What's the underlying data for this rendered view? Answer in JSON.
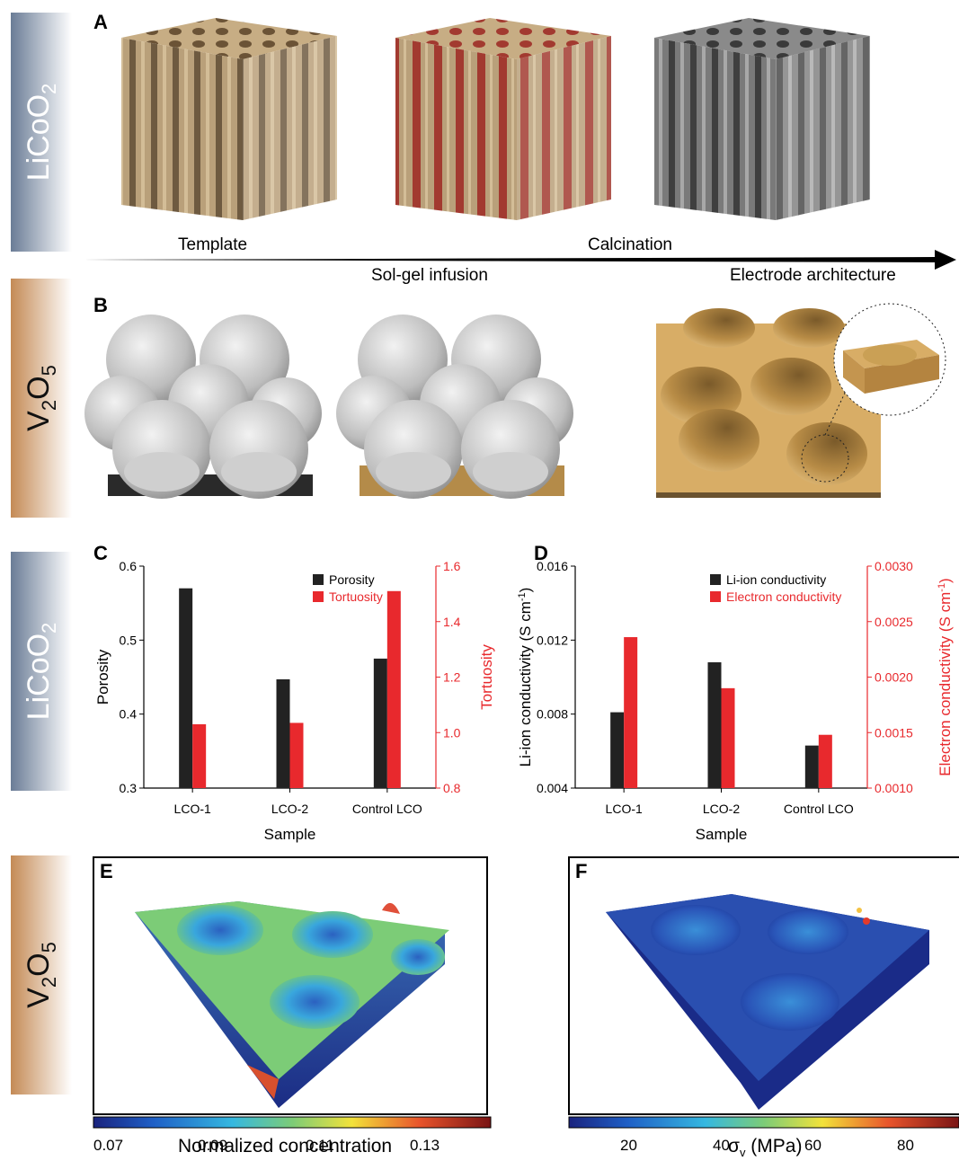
{
  "side_labels": {
    "licoo2_a": "LiCoO",
    "v2o5_b": "V",
    "licoo2_c": "LiCoO",
    "v2o5_e": "V",
    "sub2": "2",
    "sub5": "5",
    "o": "O"
  },
  "panels": {
    "a": "A",
    "b": "B",
    "c": "C",
    "d": "D",
    "e": "E",
    "f": "F"
  },
  "process": {
    "template": "Template",
    "sol_gel": "Sol-gel infusion",
    "calcination": "Calcination",
    "electrode": "Electrode architecture"
  },
  "colors": {
    "wood": "#b49a72",
    "infused": "#a23a30",
    "gray": "#6d6d6d",
    "sphere": "#d4d4d4",
    "v2o5": "#d8ad66",
    "black_bar": "#222222",
    "red_bar": "#e8292d"
  },
  "chart_c": {
    "type": "bar",
    "categories": [
      "LCO-1",
      "LCO-2",
      "Control LCO"
    ],
    "series": [
      {
        "name": "Porosity",
        "axis": "left",
        "values": [
          0.57,
          0.447,
          0.475
        ]
      },
      {
        "name": "Tortuosity",
        "axis": "right",
        "values": [
          1.03,
          1.035,
          1.51
        ]
      }
    ],
    "xlabel": "Sample",
    "ylabel_left": "Porosity",
    "ylabel_right": "Tortuosity",
    "ylim_left": [
      0.3,
      0.6
    ],
    "ylim_right": [
      0.8,
      1.6
    ],
    "yticks_left": [
      "0.3",
      "0.4",
      "0.5",
      "0.6"
    ],
    "yticks_right": [
      "0.8",
      "1.0",
      "1.2",
      "1.4",
      "1.6"
    ]
  },
  "chart_d": {
    "type": "bar",
    "categories": [
      "LCO-1",
      "LCO-2",
      "Control LCO"
    ],
    "series": [
      {
        "name": "Li-ion conductivity",
        "axis": "left",
        "values": [
          0.0081,
          0.0108,
          0.0063
        ]
      },
      {
        "name": "Electron conductivity",
        "axis": "right",
        "values": [
          0.00236,
          0.0019,
          0.00148
        ]
      }
    ],
    "xlabel": "Sample",
    "ylabel_left": "Li-ion conductivity (S cm",
    "ylabel_right": "Electron conductivity (S cm",
    "ylabel_sup": "-1",
    "ylim_left": [
      0.004,
      0.016
    ],
    "ylim_right": [
      0.001,
      0.003
    ],
    "yticks_left": [
      "0.004",
      "0.008",
      "0.012",
      "0.016"
    ],
    "yticks_right": [
      "0.0010",
      "0.0015",
      "0.0020",
      "0.0025",
      "0.0030"
    ]
  },
  "colorbar_e": {
    "ticks": [
      "0.07",
      "0.09",
      "0.11",
      "0.13"
    ],
    "label": "Normalized concentration"
  },
  "colorbar_f": {
    "ticks": [
      "20",
      "40",
      "60",
      "80"
    ],
    "label_sigma": "σ",
    "label_sub": "v",
    "label_rest": " (MPa)"
  }
}
